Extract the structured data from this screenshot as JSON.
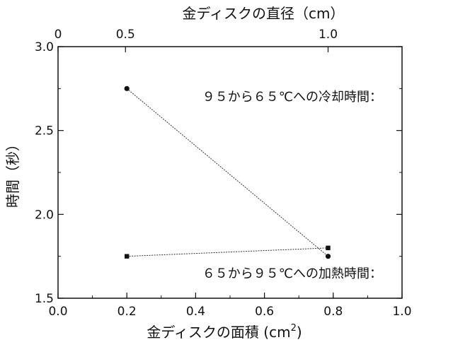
{
  "chart_data": {
    "type": "line",
    "xlabel_bottom": "金ディスクの面積 (cm",
    "xlabel_bottom_sup": "2",
    "xlabel_bottom_close": ")",
    "xlabel_top": "金ディスクの直径（cm）",
    "ylabel": "時間（秒）",
    "xlim": [
      0.0,
      1.0
    ],
    "ylim": [
      1.5,
      3.0
    ],
    "x_ticks": [
      "0.0",
      "0.2",
      "0.4",
      "0.6",
      "0.8",
      "1.0"
    ],
    "x_tick_values": [
      0.0,
      0.2,
      0.4,
      0.6,
      0.8,
      1.0
    ],
    "y_ticks": [
      "1.5",
      "2.0",
      "2.5",
      "3.0"
    ],
    "y_tick_values": [
      1.5,
      2.0,
      2.5,
      3.0
    ],
    "top_ticks": [
      {
        "label": "0",
        "area": 0.0
      },
      {
        "label": "0.5",
        "area": 0.196
      },
      {
        "label": "1.0",
        "area": 0.785
      }
    ],
    "series": [
      {
        "name": "９５から６５℃への冷却時間：",
        "marker": "circle",
        "x": [
          0.2,
          0.785
        ],
        "y": [
          2.75,
          1.75
        ]
      },
      {
        "name": "６５から９５℃への加熱時間：",
        "marker": "square",
        "x": [
          0.2,
          0.785
        ],
        "y": [
          1.75,
          1.8
        ]
      }
    ],
    "grid": false
  }
}
